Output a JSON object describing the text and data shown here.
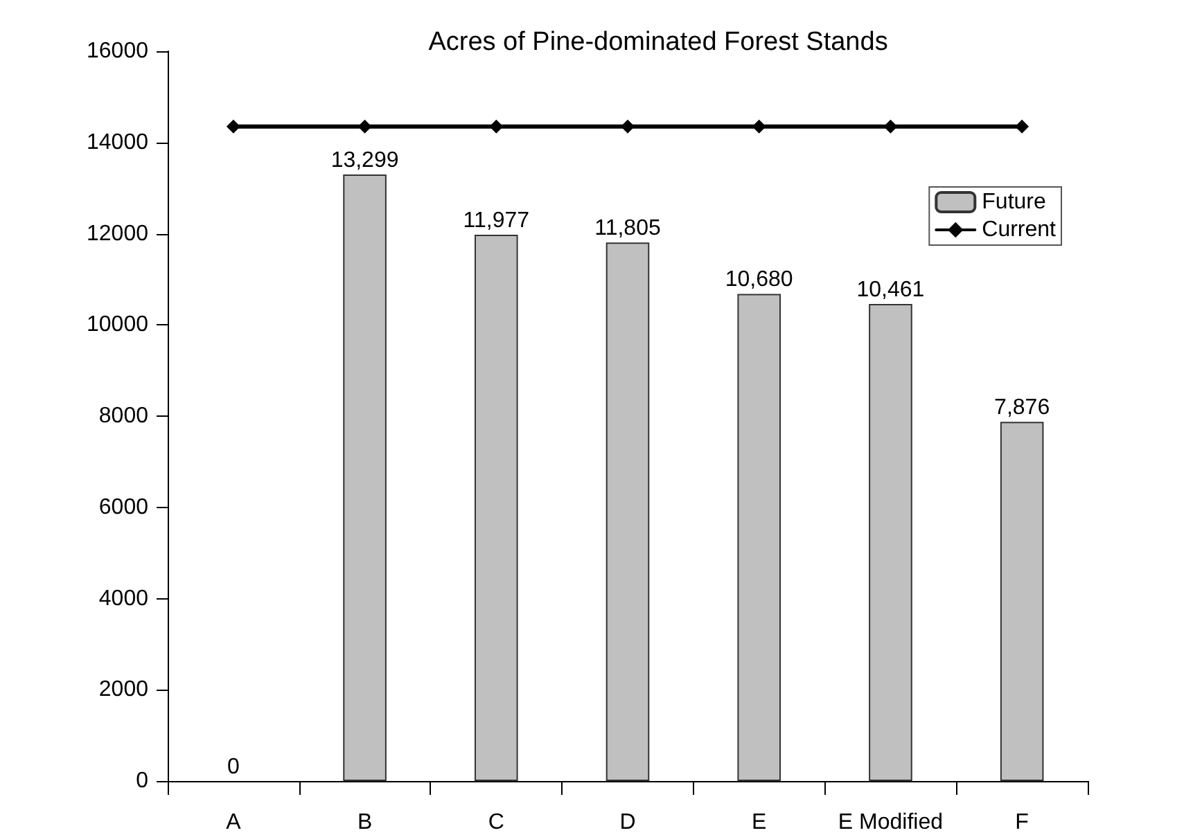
{
  "chart_data": {
    "type": "bar",
    "title": "Acres of Pine-dominated Forest Stands",
    "categories": [
      "A",
      "B",
      "C",
      "D",
      "E",
      "E Modified",
      "F"
    ],
    "series": [
      {
        "name": "Future",
        "color": "#c0c0c0",
        "values": [
          0,
          13299,
          11977,
          11805,
          10680,
          10461,
          7876
        ],
        "value_labels": [
          "0",
          "13,299",
          "11,977",
          "11,805",
          "10,680",
          "10,461",
          "7,876"
        ]
      },
      {
        "name": "Current",
        "type": "line",
        "color": "#000000",
        "values": [
          14350,
          14350,
          14350,
          14350,
          14350,
          14350,
          14350
        ],
        "marker": "diamond",
        "line_style": "solid"
      }
    ],
    "ylim": [
      0,
      16000
    ],
    "yticks": [
      0,
      2000,
      4000,
      6000,
      8000,
      10000,
      12000,
      14000,
      16000
    ],
    "grid": false,
    "legend": "top right"
  }
}
